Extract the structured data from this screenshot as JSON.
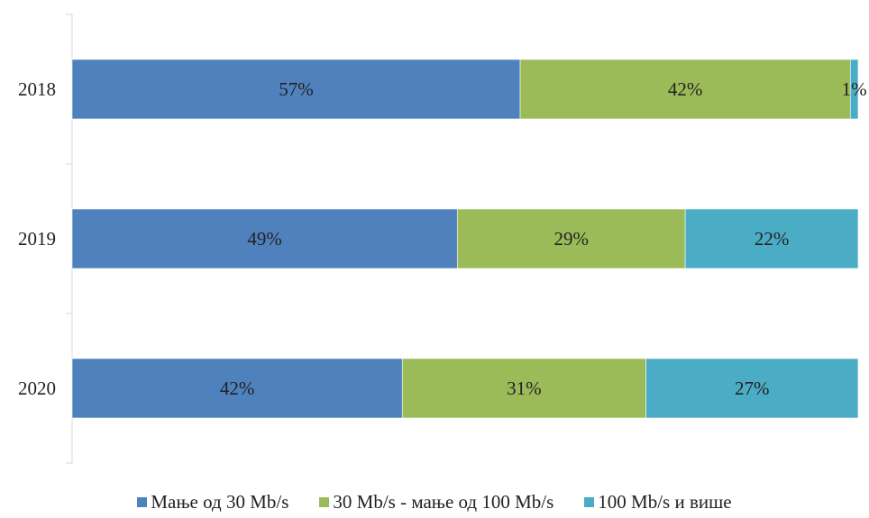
{
  "chart_data": {
    "type": "bar",
    "orientation": "horizontal",
    "stacked": true,
    "categories": [
      "2018",
      "2019",
      "2020"
    ],
    "series": [
      {
        "name": "Мање од 30 Mb/s",
        "color": "#4f81bd",
        "values": [
          57,
          49,
          42
        ],
        "labels": [
          "57%",
          "49%",
          "42%"
        ]
      },
      {
        "name": "30 Mb/s - мање од 100 Mb/s",
        "color": "#9bbb59",
        "values": [
          42,
          29,
          31
        ],
        "labels": [
          "42%",
          "29%",
          "31%"
        ]
      },
      {
        "name": "100 Mb/s и више",
        "color": "#4bacc6",
        "values": [
          1,
          22,
          27
        ],
        "labels": [
          "1%",
          "22%",
          "27%"
        ]
      }
    ],
    "xlim": [
      0,
      100
    ],
    "grid": false,
    "legend": "bottom"
  }
}
